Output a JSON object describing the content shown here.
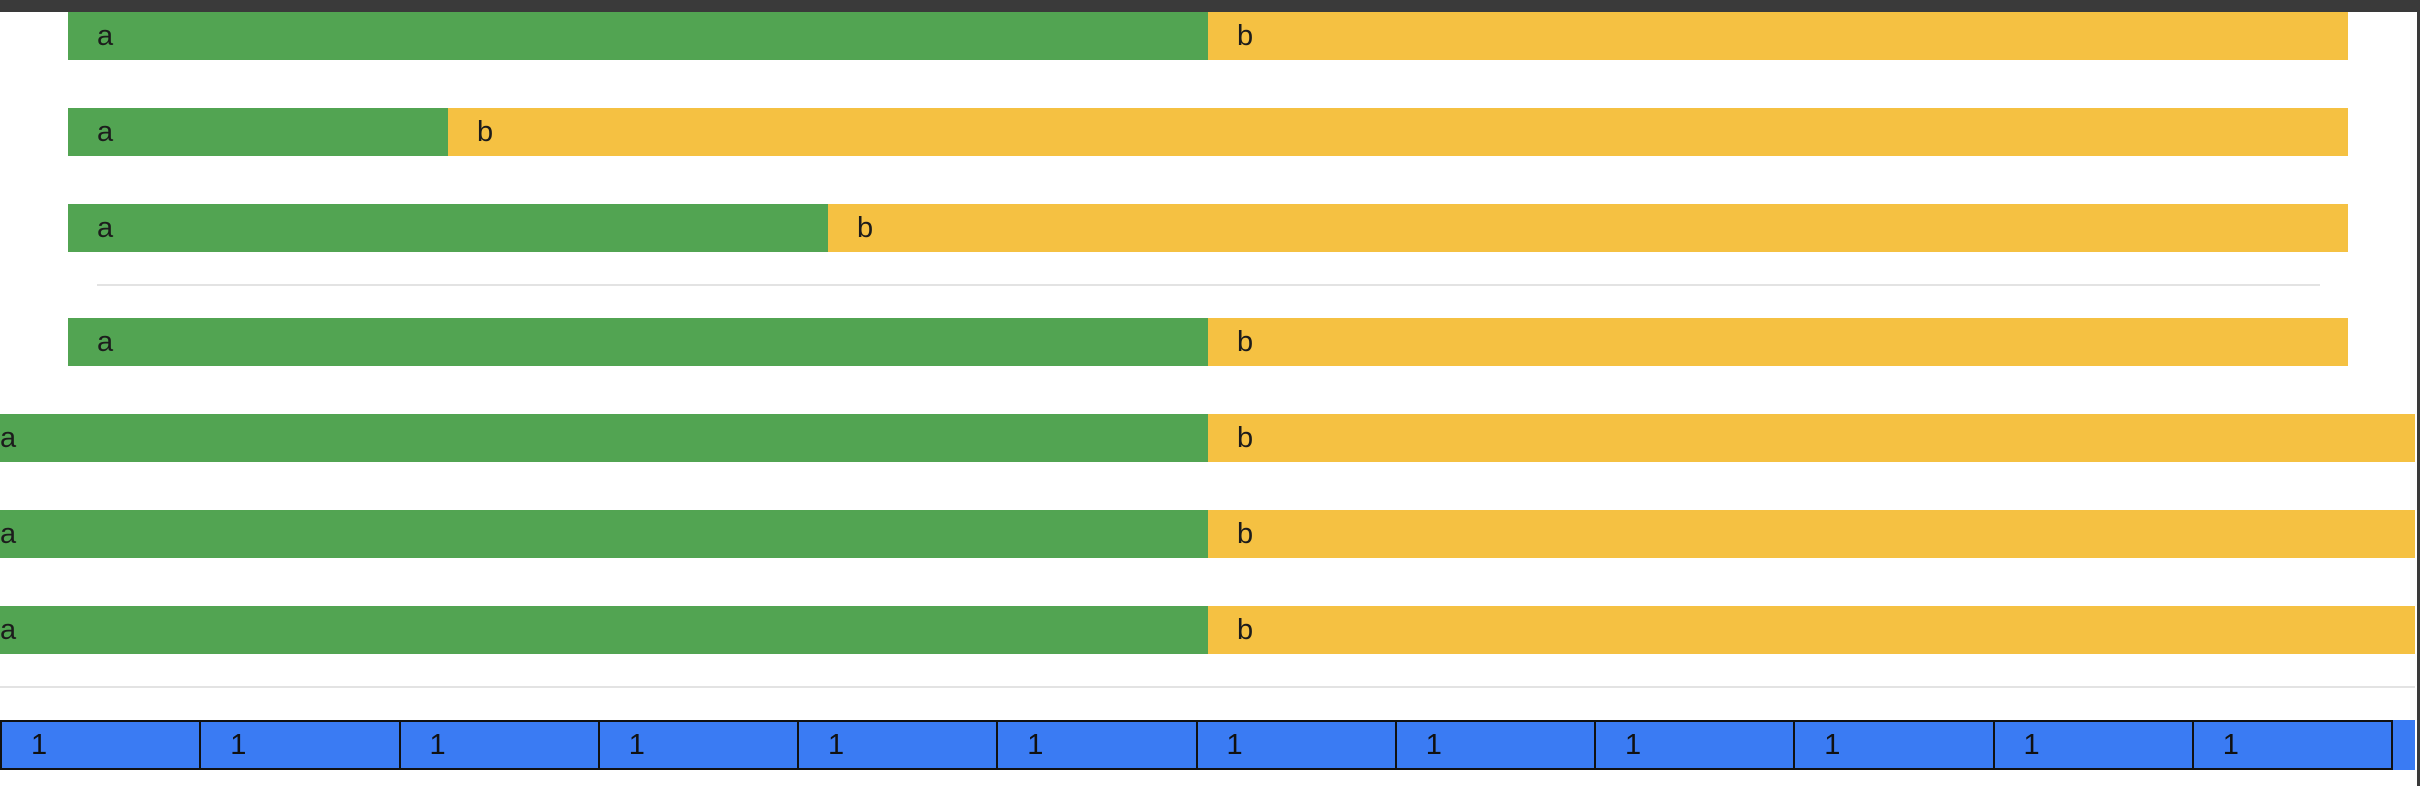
{
  "colors": {
    "green": "#52a452",
    "yellow": "#f5c142",
    "blue": "#3a7bf3"
  },
  "group1": {
    "rows": [
      {
        "a": "a",
        "b": "b",
        "a_fraction": 0.5
      },
      {
        "a": "a",
        "b": "b",
        "a_fraction": 0.1667
      },
      {
        "a": "a",
        "b": "b",
        "a_fraction": 0.3333
      }
    ]
  },
  "group2": {
    "rows": [
      {
        "a": "a",
        "b": "b",
        "a_fraction": 0.5
      }
    ]
  },
  "group3": {
    "rows": [
      {
        "a": "a",
        "b": "b",
        "a_fraction": 0.5
      },
      {
        "a": "a",
        "b": "b",
        "a_fraction": 0.5
      },
      {
        "a": "a",
        "b": "b",
        "a_fraction": 0.5
      }
    ]
  },
  "grid": {
    "cells": [
      "1",
      "1",
      "1",
      "1",
      "1",
      "1",
      "1",
      "1",
      "1",
      "1",
      "1",
      "1"
    ]
  }
}
